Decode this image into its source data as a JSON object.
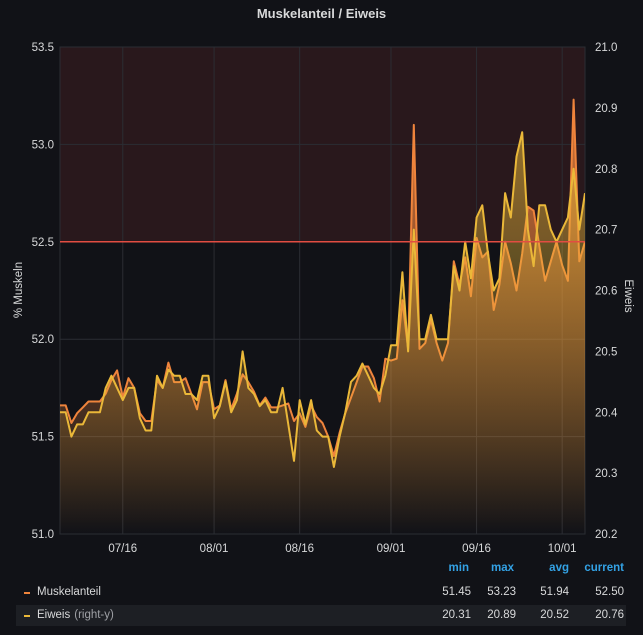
{
  "panel": {
    "title": "Muskelanteil / Eiweis"
  },
  "chart_data": {
    "type": "area",
    "title": "Muskelanteil / Eiweis",
    "ylabel_left": "% Muskeln",
    "ylabel_right": "Eiweis",
    "ylim_left": [
      51.0,
      53.5
    ],
    "ylim_right": [
      20.2,
      21.0
    ],
    "yticks_left": [
      "51.0",
      "51.5",
      "52.0",
      "52.5",
      "53.0",
      "53.5"
    ],
    "yticks_right": [
      "20.2",
      "20.3",
      "20.4",
      "20.5",
      "20.6",
      "20.7",
      "20.8",
      "20.9",
      "21.0"
    ],
    "xlim": [
      "2018-07-05",
      "2018-10-05"
    ],
    "xticks": [
      {
        "label": "07/16",
        "date": "2018-07-16"
      },
      {
        "label": "08/01",
        "date": "2018-08-01"
      },
      {
        "label": "08/16",
        "date": "2018-08-16"
      },
      {
        "label": "09/01",
        "date": "2018-09-01"
      },
      {
        "label": "09/16",
        "date": "2018-09-16"
      },
      {
        "label": "10/01",
        "date": "2018-10-01"
      }
    ],
    "threshold": {
      "value": 52.5,
      "axis": "left",
      "color": "#e24d42"
    },
    "grid": true,
    "series": [
      {
        "name": "Muskelanteil",
        "axis": "left",
        "color": "#ef843c",
        "points": [
          [
            "2018-07-05",
            51.66
          ],
          [
            "2018-07-06",
            51.66
          ],
          [
            "2018-07-07",
            51.57
          ],
          [
            "2018-07-08",
            51.62
          ],
          [
            "2018-07-09",
            51.65
          ],
          [
            "2018-07-10",
            51.68
          ],
          [
            "2018-07-11",
            51.68
          ],
          [
            "2018-07-12",
            51.68
          ],
          [
            "2018-07-13",
            51.72
          ],
          [
            "2018-07-14",
            51.79
          ],
          [
            "2018-07-15",
            51.84
          ],
          [
            "2018-07-16",
            51.7
          ],
          [
            "2018-07-17",
            51.8
          ],
          [
            "2018-07-18",
            51.75
          ],
          [
            "2018-07-19",
            51.62
          ],
          [
            "2018-07-20",
            51.58
          ],
          [
            "2018-07-21",
            51.58
          ],
          [
            "2018-07-22",
            51.79
          ],
          [
            "2018-07-23",
            51.75
          ],
          [
            "2018-07-24",
            51.88
          ],
          [
            "2018-07-25",
            51.78
          ],
          [
            "2018-07-26",
            51.78
          ],
          [
            "2018-07-27",
            51.8
          ],
          [
            "2018-07-28",
            51.72
          ],
          [
            "2018-07-29",
            51.64
          ],
          [
            "2018-07-30",
            51.78
          ],
          [
            "2018-07-31",
            51.78
          ],
          [
            "2018-08-01",
            51.64
          ],
          [
            "2018-08-02",
            51.66
          ],
          [
            "2018-08-03",
            51.79
          ],
          [
            "2018-08-04",
            51.64
          ],
          [
            "2018-08-05",
            51.72
          ],
          [
            "2018-08-06",
            51.82
          ],
          [
            "2018-08-07",
            51.78
          ],
          [
            "2018-08-08",
            51.73
          ],
          [
            "2018-08-09",
            51.66
          ],
          [
            "2018-08-10",
            51.7
          ],
          [
            "2018-08-11",
            51.65
          ],
          [
            "2018-08-12",
            51.65
          ],
          [
            "2018-08-13",
            51.66
          ],
          [
            "2018-08-14",
            51.67
          ],
          [
            "2018-08-15",
            51.58
          ],
          [
            "2018-08-16",
            51.62
          ],
          [
            "2018-08-17",
            51.55
          ],
          [
            "2018-08-18",
            51.66
          ],
          [
            "2018-08-19",
            51.6
          ],
          [
            "2018-08-20",
            51.57
          ],
          [
            "2018-08-21",
            51.5
          ],
          [
            "2018-08-22",
            51.4
          ],
          [
            "2018-08-23",
            51.52
          ],
          [
            "2018-08-24",
            51.62
          ],
          [
            "2018-08-25",
            51.7
          ],
          [
            "2018-08-26",
            51.78
          ],
          [
            "2018-08-27",
            51.86
          ],
          [
            "2018-08-28",
            51.86
          ],
          [
            "2018-08-29",
            51.8
          ],
          [
            "2018-08-30",
            51.68
          ],
          [
            "2018-08-31",
            51.9
          ],
          [
            "2018-09-01",
            51.89
          ],
          [
            "2018-09-02",
            51.9
          ],
          [
            "2018-09-03",
            52.2
          ],
          [
            "2018-09-04",
            51.95
          ],
          [
            "2018-09-05",
            53.1
          ],
          [
            "2018-09-06",
            51.95
          ],
          [
            "2018-09-07",
            51.98
          ],
          [
            "2018-09-08",
            52.1
          ],
          [
            "2018-09-09",
            51.98
          ],
          [
            "2018-09-10",
            51.89
          ],
          [
            "2018-09-11",
            51.98
          ],
          [
            "2018-09-12",
            52.4
          ],
          [
            "2018-09-13",
            52.28
          ],
          [
            "2018-09-14",
            52.42
          ],
          [
            "2018-09-15",
            52.22
          ],
          [
            "2018-09-16",
            52.52
          ],
          [
            "2018-09-17",
            52.42
          ],
          [
            "2018-09-18",
            52.45
          ],
          [
            "2018-09-19",
            52.15
          ],
          [
            "2018-09-20",
            52.28
          ],
          [
            "2018-09-21",
            52.5
          ],
          [
            "2018-09-22",
            52.39
          ],
          [
            "2018-09-23",
            52.25
          ],
          [
            "2018-09-24",
            52.44
          ],
          [
            "2018-09-25",
            52.68
          ],
          [
            "2018-09-26",
            52.66
          ],
          [
            "2018-09-27",
            52.48
          ],
          [
            "2018-09-28",
            52.3
          ],
          [
            "2018-09-29",
            52.4
          ],
          [
            "2018-09-30",
            52.5
          ],
          [
            "2018-10-01",
            52.38
          ],
          [
            "2018-10-02",
            52.3
          ],
          [
            "2018-10-03",
            53.23
          ],
          [
            "2018-10-04",
            52.4
          ],
          [
            "2018-10-05",
            52.5
          ]
        ]
      },
      {
        "name": "Eiweis",
        "suffix": "(right-y)",
        "axis": "right",
        "color": "#eab839",
        "points": [
          [
            "2018-07-05",
            20.4
          ],
          [
            "2018-07-06",
            20.4
          ],
          [
            "2018-07-07",
            20.36
          ],
          [
            "2018-07-08",
            20.38
          ],
          [
            "2018-07-09",
            20.38
          ],
          [
            "2018-07-10",
            20.4
          ],
          [
            "2018-07-11",
            20.4
          ],
          [
            "2018-07-12",
            20.4
          ],
          [
            "2018-07-13",
            20.44
          ],
          [
            "2018-07-14",
            20.46
          ],
          [
            "2018-07-15",
            20.44
          ],
          [
            "2018-07-16",
            20.42
          ],
          [
            "2018-07-17",
            20.44
          ],
          [
            "2018-07-18",
            20.44
          ],
          [
            "2018-07-19",
            20.39
          ],
          [
            "2018-07-20",
            20.37
          ],
          [
            "2018-07-21",
            20.37
          ],
          [
            "2018-07-22",
            20.46
          ],
          [
            "2018-07-23",
            20.44
          ],
          [
            "2018-07-24",
            20.47
          ],
          [
            "2018-07-25",
            20.46
          ],
          [
            "2018-07-26",
            20.46
          ],
          [
            "2018-07-27",
            20.43
          ],
          [
            "2018-07-28",
            20.43
          ],
          [
            "2018-07-29",
            20.42
          ],
          [
            "2018-07-30",
            20.46
          ],
          [
            "2018-07-31",
            20.46
          ],
          [
            "2018-08-01",
            20.39
          ],
          [
            "2018-08-02",
            20.41
          ],
          [
            "2018-08-03",
            20.45
          ],
          [
            "2018-08-04",
            20.4
          ],
          [
            "2018-08-05",
            20.42
          ],
          [
            "2018-08-06",
            20.5
          ],
          [
            "2018-08-07",
            20.44
          ],
          [
            "2018-08-08",
            20.43
          ],
          [
            "2018-08-09",
            20.41
          ],
          [
            "2018-08-10",
            20.42
          ],
          [
            "2018-08-11",
            20.4
          ],
          [
            "2018-08-12",
            20.4
          ],
          [
            "2018-08-13",
            20.44
          ],
          [
            "2018-08-14",
            20.38
          ],
          [
            "2018-08-15",
            20.32
          ],
          [
            "2018-08-16",
            20.42
          ],
          [
            "2018-08-17",
            20.38
          ],
          [
            "2018-08-18",
            20.42
          ],
          [
            "2018-08-19",
            20.37
          ],
          [
            "2018-08-20",
            20.36
          ],
          [
            "2018-08-21",
            20.36
          ],
          [
            "2018-08-22",
            20.31
          ],
          [
            "2018-08-23",
            20.36
          ],
          [
            "2018-08-24",
            20.4
          ],
          [
            "2018-08-25",
            20.45
          ],
          [
            "2018-08-26",
            20.46
          ],
          [
            "2018-08-27",
            20.48
          ],
          [
            "2018-08-28",
            20.46
          ],
          [
            "2018-08-29",
            20.44
          ],
          [
            "2018-08-30",
            20.43
          ],
          [
            "2018-08-31",
            20.46
          ],
          [
            "2018-09-01",
            20.51
          ],
          [
            "2018-09-02",
            20.51
          ],
          [
            "2018-09-03",
            20.63
          ],
          [
            "2018-09-04",
            20.5
          ],
          [
            "2018-09-05",
            20.7
          ],
          [
            "2018-09-06",
            20.52
          ],
          [
            "2018-09-07",
            20.52
          ],
          [
            "2018-09-08",
            20.56
          ],
          [
            "2018-09-09",
            20.52
          ],
          [
            "2018-09-10",
            20.52
          ],
          [
            "2018-09-11",
            20.52
          ],
          [
            "2018-09-12",
            20.64
          ],
          [
            "2018-09-13",
            20.6
          ],
          [
            "2018-09-14",
            20.68
          ],
          [
            "2018-09-15",
            20.62
          ],
          [
            "2018-09-16",
            20.72
          ],
          [
            "2018-09-17",
            20.74
          ],
          [
            "2018-09-18",
            20.66
          ],
          [
            "2018-09-19",
            20.6
          ],
          [
            "2018-09-20",
            20.62
          ],
          [
            "2018-09-21",
            20.76
          ],
          [
            "2018-09-22",
            20.72
          ],
          [
            "2018-09-23",
            20.82
          ],
          [
            "2018-09-24",
            20.86
          ],
          [
            "2018-09-25",
            20.7
          ],
          [
            "2018-09-26",
            20.64
          ],
          [
            "2018-09-27",
            20.74
          ],
          [
            "2018-09-28",
            20.74
          ],
          [
            "2018-09-29",
            20.7
          ],
          [
            "2018-09-30",
            20.68
          ],
          [
            "2018-10-01",
            20.7
          ],
          [
            "2018-10-02",
            20.72
          ],
          [
            "2018-10-03",
            20.8
          ],
          [
            "2018-10-04",
            20.7
          ],
          [
            "2018-10-05",
            20.76
          ]
        ]
      }
    ]
  },
  "legend": {
    "headers": {
      "min": "min",
      "max": "max",
      "avg": "avg",
      "current": "current"
    },
    "rows": [
      {
        "name": "Muskelanteil",
        "suffix": "",
        "min": "51.45",
        "max": "53.23",
        "avg": "51.94",
        "current": "52.50",
        "color": "#ef843c"
      },
      {
        "name": "Eiweis",
        "suffix": "(right-y)",
        "min": "20.31",
        "max": "20.89",
        "avg": "20.52",
        "current": "20.76",
        "color": "#eab839"
      }
    ]
  }
}
